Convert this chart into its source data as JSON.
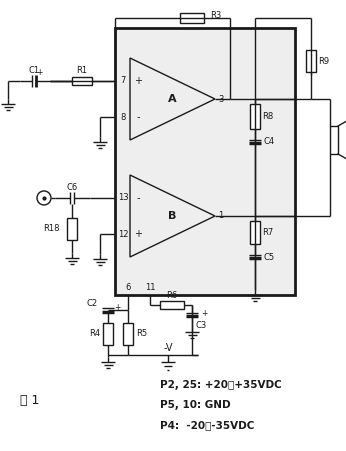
{
  "fig_label": "图 1",
  "annotation_lines": [
    "P2, 25: +20～+35VDC",
    "P5, 10: GND",
    "P4:  -20～-35VDC"
  ],
  "bg_color": "#ffffff",
  "line_color": "#1a1a1a",
  "text_color": "#1a1a1a"
}
